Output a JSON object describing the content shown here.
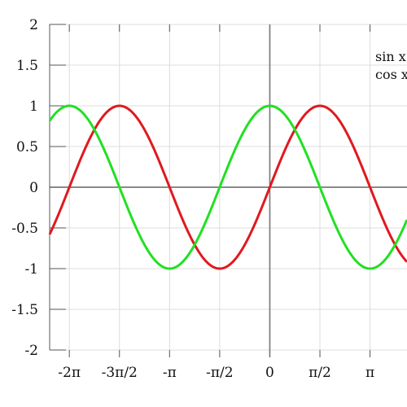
{
  "chart_data": {
    "type": "line",
    "title": "",
    "xlabel": "",
    "ylabel": "",
    "xlim": [
      -6.9,
      4.3
    ],
    "ylim": [
      -2,
      2
    ],
    "grid": true,
    "legend_position": "top-right",
    "x_ticks": [
      {
        "value": -6.283185,
        "label": "-2π"
      },
      {
        "value": -4.712389,
        "label": "-3π/2"
      },
      {
        "value": -3.141593,
        "label": "-π"
      },
      {
        "value": -1.570796,
        "label": "-π/2"
      },
      {
        "value": 0,
        "label": "0"
      },
      {
        "value": 1.570796,
        "label": "π/2"
      },
      {
        "value": 3.141593,
        "label": "π"
      }
    ],
    "y_ticks": [
      {
        "value": 2,
        "label": "2"
      },
      {
        "value": 1.5,
        "label": "1.5"
      },
      {
        "value": 1,
        "label": "1"
      },
      {
        "value": 0.5,
        "label": "0.5"
      },
      {
        "value": 0,
        "label": "0"
      },
      {
        "value": -0.5,
        "label": "-0.5"
      },
      {
        "value": -1,
        "label": "-1"
      },
      {
        "value": -1.5,
        "label": "-1.5"
      },
      {
        "value": -2,
        "label": "-2"
      }
    ],
    "series": [
      {
        "name": "sin x",
        "function": "sin",
        "color": "#e0191f"
      },
      {
        "name": "cos x",
        "function": "cos",
        "color": "#22e022"
      }
    ]
  }
}
